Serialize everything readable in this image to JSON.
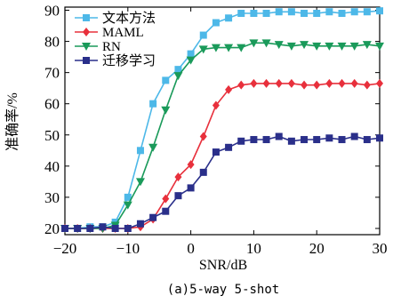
{
  "chart_data": {
    "type": "line",
    "xlabel": "SNR/dB",
    "ylabel": "准确率/%",
    "caption": "(a)5-way 5-shot",
    "xlim": [
      -20,
      30
    ],
    "ylim": [
      18,
      91
    ],
    "xticks": [
      -20,
      -10,
      0,
      10,
      20,
      30
    ],
    "yticks": [
      20,
      30,
      40,
      50,
      60,
      70,
      80,
      90
    ],
    "xtick_labels": [
      "−20",
      "−10",
      "0",
      "10",
      "20",
      "30"
    ],
    "ytick_labels": [
      "20",
      "30",
      "40",
      "50",
      "60",
      "70",
      "80",
      "90"
    ],
    "legend_position": "top-left",
    "grid": false,
    "x": [
      -20,
      -18,
      -16,
      -14,
      -12,
      -10,
      -8,
      -6,
      -4,
      -2,
      0,
      2,
      4,
      6,
      8,
      10,
      12,
      14,
      16,
      18,
      20,
      22,
      24,
      26,
      28,
      30
    ],
    "series": [
      {
        "name": "文本方法",
        "color": "#4db8e8",
        "marker": "square",
        "values": [
          20,
          20,
          20.5,
          20.5,
          22,
          30,
          45,
          60,
          67.5,
          71,
          76,
          82,
          86,
          87.5,
          89,
          89,
          89,
          89.5,
          89.5,
          89,
          89,
          89.5,
          89,
          89.5,
          89.5,
          89.8
        ]
      },
      {
        "name": "MAML",
        "color": "#e8303c",
        "marker": "diamond",
        "values": [
          20,
          20,
          20,
          20,
          20,
          20,
          20.5,
          23,
          29.5,
          36.5,
          40.5,
          49.5,
          59.5,
          64.5,
          66,
          66.5,
          66.5,
          66.5,
          66.5,
          66,
          66,
          66.5,
          66.5,
          66.5,
          66,
          66.5
        ]
      },
      {
        "name": "RN",
        "color": "#1a9a5a",
        "marker": "triangle-down",
        "values": [
          20,
          20,
          20,
          20,
          21,
          27.5,
          35,
          46,
          58,
          69,
          74,
          77.5,
          78,
          78,
          78,
          79.5,
          79.5,
          79,
          78.5,
          79,
          78.5,
          78.5,
          78.5,
          78.5,
          79,
          78.5
        ]
      },
      {
        "name": "迁移学习",
        "color": "#2a2f8a",
        "marker": "square",
        "values": [
          20,
          20,
          20,
          20.5,
          20,
          20,
          21.5,
          23.5,
          25.5,
          30.5,
          33,
          38,
          44.5,
          46,
          48,
          48.5,
          48.5,
          49.5,
          48,
          48.5,
          48.5,
          49,
          48.5,
          49.5,
          48.5,
          49
        ]
      }
    ]
  }
}
